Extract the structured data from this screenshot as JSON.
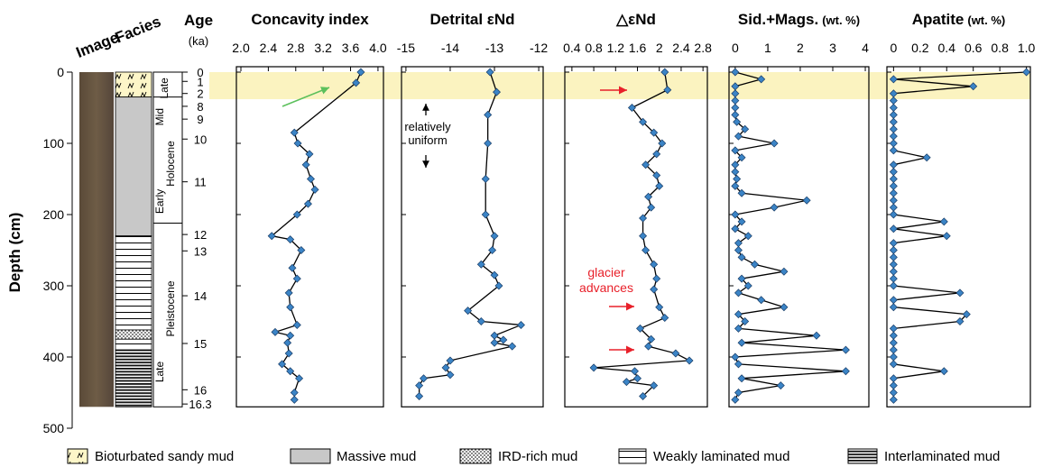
{
  "chart_data": [
    {
      "type": "line",
      "title": "Concavity index",
      "xlim": [
        1.934,
        4.08
      ],
      "xticks": [
        {
          "value": 2,
          "label": "2.0"
        },
        2.4,
        2.8,
        3.2,
        3.6,
        {
          "value": 4,
          "label": "4.0"
        }
      ],
      "depth": [
        0,
        15,
        85,
        100,
        115,
        130,
        150,
        165,
        185,
        200,
        230,
        235,
        250,
        275,
        290,
        310,
        330,
        355,
        365,
        370,
        380,
        395,
        410,
        420,
        430,
        450,
        460
      ],
      "values": [
        3.75,
        3.68,
        2.78,
        2.83,
        3.0,
        2.95,
        3.02,
        3.08,
        2.98,
        2.82,
        2.45,
        2.72,
        2.88,
        2.75,
        2.82,
        2.7,
        2.72,
        2.82,
        2.5,
        2.72,
        2.68,
        2.7,
        2.6,
        2.72,
        2.85,
        2.78,
        2.78
      ]
    },
    {
      "type": "line",
      "title": "Detrital εNd",
      "xlim": [
        -15.1,
        -11.9
      ],
      "xticks": [
        -15,
        -14,
        -13,
        -12
      ],
      "depth": [
        0,
        28,
        60,
        100,
        150,
        200,
        230,
        250,
        270,
        285,
        300,
        335,
        350,
        355,
        370,
        376,
        380,
        385,
        405,
        415,
        425,
        430,
        440,
        455
      ],
      "values": [
        -13.1,
        -12.95,
        -13.15,
        -13.15,
        -13.2,
        -13.2,
        -13.0,
        -13.05,
        -13.3,
        -13.0,
        -12.9,
        -13.6,
        -13.3,
        -12.4,
        -13.0,
        -12.8,
        -13.0,
        -12.6,
        -14.0,
        -14.1,
        -14.0,
        -14.6,
        -14.7,
        -14.7
      ],
      "annotations": [
        "relatively",
        "uniform"
      ]
    },
    {
      "type": "line",
      "title": "△εNd",
      "xlim": [
        0.27,
        2.88
      ],
      "xticks": [
        0.4,
        0.8,
        1.2,
        1.6,
        2,
        2.4,
        2.8
      ],
      "depth": [
        0,
        25,
        50,
        70,
        85,
        100,
        115,
        130,
        145,
        160,
        175,
        190,
        205,
        230,
        250,
        270,
        290,
        305,
        330,
        345,
        360,
        375,
        385,
        395,
        405,
        415,
        420,
        430,
        435,
        440,
        455
      ],
      "values": [
        2.1,
        2.15,
        1.5,
        1.7,
        1.9,
        2.05,
        1.95,
        1.75,
        1.95,
        2.0,
        1.8,
        1.85,
        1.7,
        1.7,
        1.75,
        1.9,
        1.95,
        1.9,
        2.0,
        2.1,
        1.65,
        1.85,
        1.8,
        2.3,
        2.55,
        0.8,
        1.55,
        1.6,
        1.4,
        1.9,
        1.7
      ],
      "annotations": [
        "glacier",
        "advances"
      ]
    },
    {
      "type": "line",
      "title": "Sid.+Mags.",
      "unit": "(wt. %)",
      "xlim": [
        -0.19,
        4.11
      ],
      "xticks": [
        0,
        1,
        2,
        3,
        4
      ],
      "depth": [
        0,
        10,
        20,
        30,
        40,
        50,
        60,
        70,
        80,
        90,
        100,
        110,
        120,
        130,
        140,
        150,
        160,
        170,
        180,
        190,
        200,
        210,
        220,
        230,
        240,
        250,
        260,
        270,
        280,
        290,
        300,
        310,
        320,
        330,
        340,
        350,
        360,
        370,
        380,
        390,
        400,
        410,
        420,
        430,
        440,
        450,
        460
      ],
      "values": [
        0,
        0.8,
        0,
        0,
        0,
        0,
        0,
        0.05,
        0.3,
        0.1,
        1.2,
        0,
        0.2,
        0,
        0,
        0.05,
        0,
        0.2,
        2.2,
        1.2,
        0,
        0.2,
        0,
        0.4,
        0.1,
        0.1,
        0.2,
        0.6,
        1.5,
        0.2,
        0.4,
        0.1,
        0.8,
        1.5,
        0.1,
        0.3,
        0.1,
        2.5,
        0.2,
        3.4,
        0,
        0.1,
        3.4,
        0.2,
        1.4,
        0.1,
        0
      ]
    },
    {
      "type": "line",
      "title": "Apatite",
      "unit": "(wt. %)",
      "xlim": [
        -0.05,
        1.03
      ],
      "xticks": [
        0,
        0.2,
        0.4,
        0.6,
        0.8,
        {
          "value": 1,
          "label": "1.0"
        }
      ],
      "depth": [
        0,
        10,
        20,
        30,
        40,
        50,
        60,
        70,
        80,
        90,
        100,
        110,
        120,
        130,
        140,
        150,
        160,
        170,
        180,
        190,
        200,
        210,
        220,
        230,
        240,
        250,
        260,
        270,
        280,
        290,
        300,
        310,
        320,
        330,
        340,
        350,
        360,
        370,
        380,
        390,
        400,
        410,
        420,
        430,
        440,
        450,
        460
      ],
      "values": [
        1,
        0,
        0.6,
        0,
        0,
        0,
        0,
        0,
        0,
        0,
        0,
        0,
        0.25,
        0,
        0,
        0,
        0,
        0,
        0,
        0,
        0,
        0.38,
        0,
        0.4,
        0,
        0,
        0,
        0,
        0,
        0,
        0,
        0.5,
        0,
        0,
        0.55,
        0.5,
        0,
        0,
        0,
        0,
        0,
        0,
        0.38,
        0,
        0,
        0,
        0
      ]
    }
  ],
  "depth_axis": {
    "label": "Depth (cm)",
    "ylim": [
      0,
      500
    ],
    "yticks": [
      0,
      100,
      200,
      300,
      400,
      500
    ],
    "highlight": [
      0,
      38
    ],
    "bottom": 470
  },
  "columns": {
    "image": "Image",
    "facies": "Facies",
    "age": "Age",
    "age_unit": "(ka)"
  },
  "age_ticks": [
    {
      "label": "0",
      "depth": 0
    },
    {
      "label": "1",
      "depth": 13
    },
    {
      "label": "2",
      "depth": 30
    },
    {
      "label": "8",
      "depth": 48
    },
    {
      "label": "9",
      "depth": 66
    },
    {
      "label": "10",
      "depth": 94
    },
    {
      "label": "11",
      "depth": 154
    },
    {
      "label": "12",
      "depth": 228
    },
    {
      "label": "13",
      "depth": 251
    },
    {
      "label": "14",
      "depth": 314
    },
    {
      "label": "15",
      "depth": 381
    },
    {
      "label": "16",
      "depth": 446
    },
    {
      "label": "16.3",
      "depth": 466
    }
  ],
  "stages": {
    "late_holocene": "Late",
    "mid": "Mid",
    "holocene": "Holocene",
    "early": "Early",
    "late_pleistocene": "Late",
    "pleistocene": "Pleistocene",
    "boundaries": [
      35,
      212
    ]
  },
  "facies": [
    {
      "kind": "bio",
      "top": 0,
      "bottom": 35
    },
    {
      "kind": "massive",
      "top": 35,
      "bottom": 230
    },
    {
      "kind": "weak",
      "top": 230,
      "bottom": 362
    },
    {
      "kind": "ird",
      "top": 362,
      "bottom": 375
    },
    {
      "kind": "weak",
      "top": 375,
      "bottom": 390
    },
    {
      "kind": "inter",
      "top": 390,
      "bottom": 470
    }
  ],
  "legend": [
    "Bioturbated sandy mud",
    "Massive mud",
    "IRD-rich mud",
    "Weakly laminated mud",
    "Interlaminated mud"
  ]
}
